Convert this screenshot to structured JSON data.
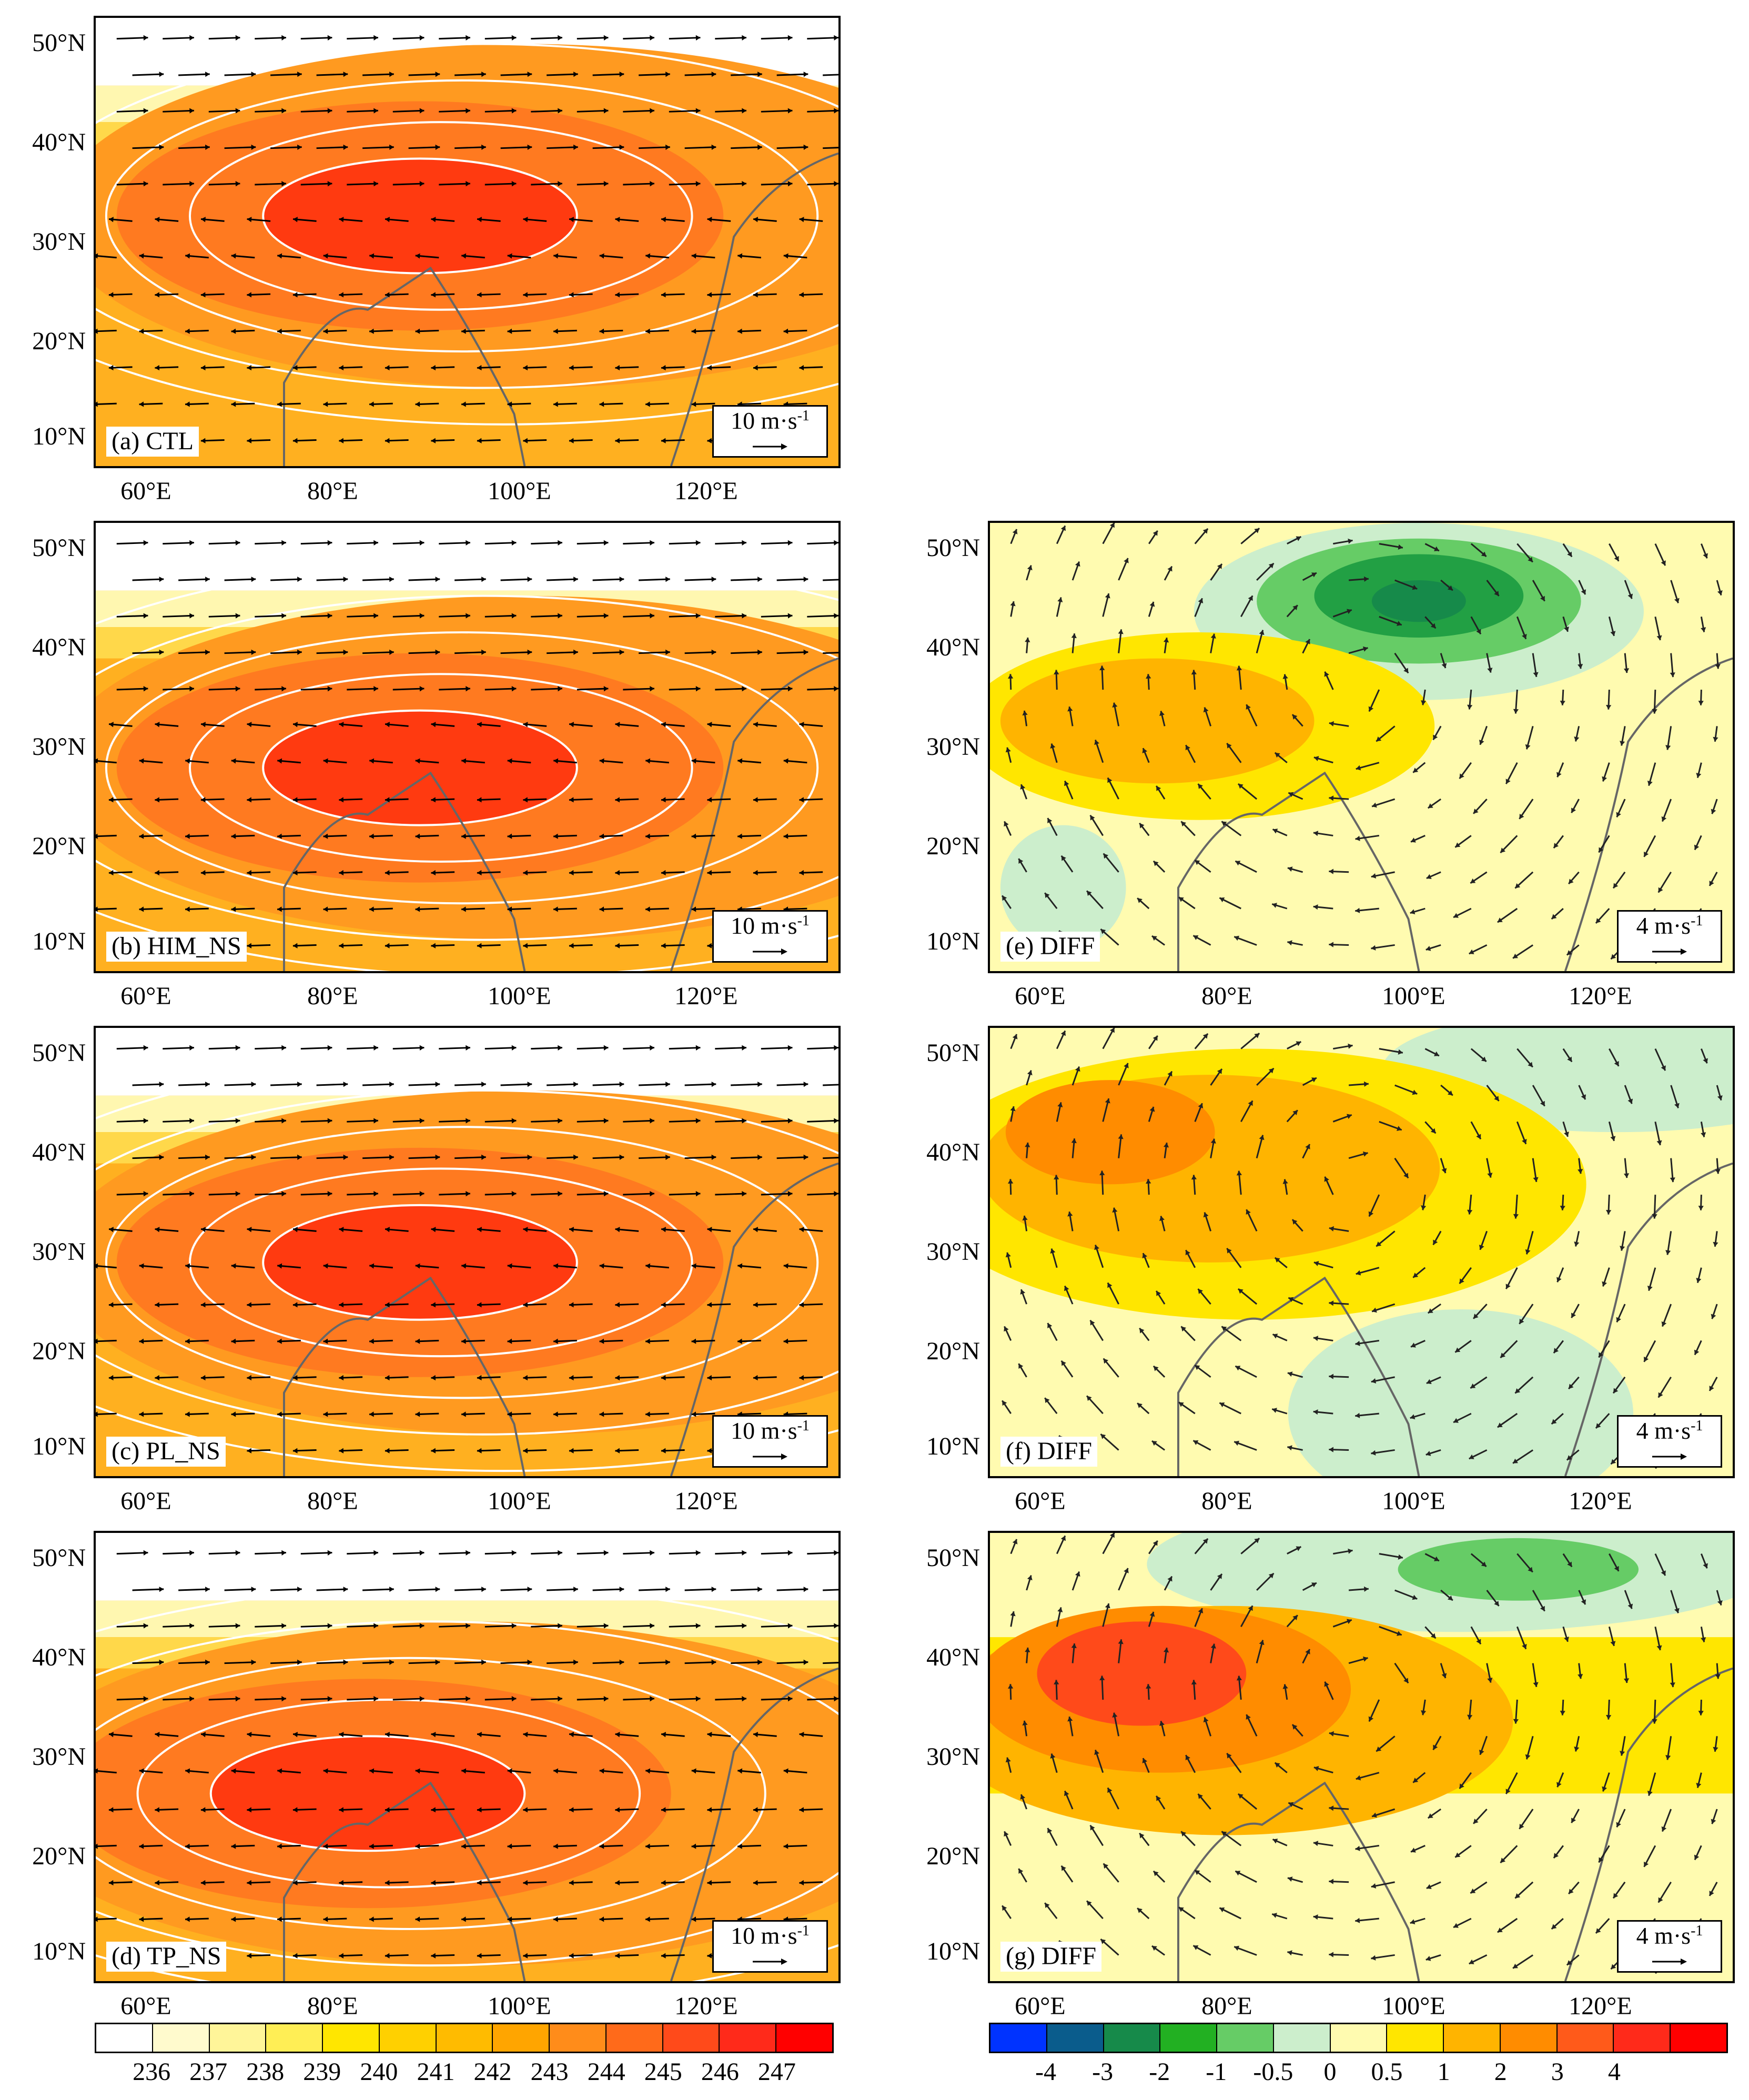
{
  "panels_left": [
    {
      "label": "(a) CTL",
      "ref": "10 m·s",
      "sup": "-1"
    },
    {
      "label": "(b) HIM_NS",
      "ref": "10 m·s",
      "sup": "-1"
    },
    {
      "label": "(c) PL_NS",
      "ref": "10 m·s",
      "sup": "-1"
    },
    {
      "label": "(d) TP_NS",
      "ref": "10 m·s",
      "sup": "-1"
    }
  ],
  "panels_right": [
    {
      "label": "(e) DIFF",
      "ref": "4 m·s",
      "sup": "-1"
    },
    {
      "label": "(f) DIFF",
      "ref": "4 m·s",
      "sup": "-1"
    },
    {
      "label": "(g) DIFF",
      "ref": "4 m·s",
      "sup": "-1"
    }
  ],
  "lat_labels": [
    "50°N",
    "40°N",
    "30°N",
    "20°N",
    "10°N"
  ],
  "lon_labels": [
    "60°E",
    "80°E",
    "100°E",
    "120°E"
  ],
  "colorbar_left": {
    "ticks": [
      "236",
      "237",
      "238",
      "239",
      "240",
      "241",
      "242",
      "243",
      "244",
      "245",
      "246",
      "247"
    ],
    "colors": [
      "#ffffff",
      "#fffacd",
      "#fff599",
      "#ffee55",
      "#ffe600",
      "#ffd000",
      "#ffbb00",
      "#ffa500",
      "#ff8c1a",
      "#ff6a1a",
      "#ff4a1a",
      "#ff2a1a",
      "#ff0000"
    ]
  },
  "colorbar_right": {
    "ticks": [
      "-4",
      "-3",
      "-2",
      "-1",
      "-0.5",
      "0",
      "0.5",
      "1",
      "2",
      "3",
      "4"
    ],
    "colors": [
      "#0033ff",
      "#0a5c8c",
      "#168a4a",
      "#22b022",
      "#66cc66",
      "#cceecc",
      "#fffbb0",
      "#ffe600",
      "#ffb400",
      "#ff8c00",
      "#ff5a1a",
      "#ff2a1a",
      "#ff0000"
    ]
  },
  "colors": {
    "field_warm": [
      "#ffffff",
      "#fff7b0",
      "#ffd84a",
      "#ffb020",
      "#ff7a20",
      "#ff3a10"
    ],
    "diff_neg": "#33aa55",
    "diff_pos": "#ff8a20",
    "contour": "#ffffff",
    "coast": "#666666"
  }
}
